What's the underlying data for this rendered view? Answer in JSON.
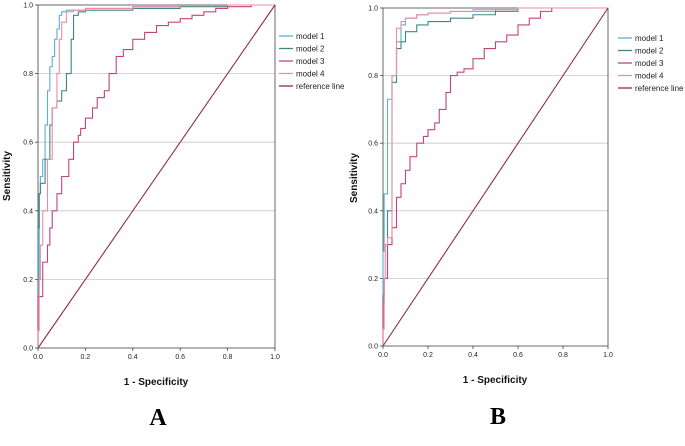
{
  "chart_data": [
    {
      "type": "line",
      "panel_label": "A",
      "xlabel": "1 - Specificity",
      "ylabel": "Sensitivity",
      "xlim": [
        0,
        1
      ],
      "ylim": [
        0,
        1
      ],
      "xticks": [
        "0.0",
        "0.2",
        "0.4",
        "0.6",
        "0.8",
        "1.0"
      ],
      "yticks": [
        "0.0",
        "0.2",
        "0.4",
        "0.6",
        "0.8",
        "1.0"
      ],
      "grid": "horizontal",
      "legend": "top-right",
      "series": [
        {
          "name": "model 1",
          "color": "#5aafd6",
          "step": true,
          "x": [
            0,
            0.005,
            0.01,
            0.02,
            0.03,
            0.04,
            0.05,
            0.06,
            0.07,
            0.08,
            0.09,
            0.1,
            0.12,
            0.2,
            0.4,
            0.6,
            0.8,
            1.0
          ],
          "y": [
            0,
            0.2,
            0.45,
            0.5,
            0.55,
            0.65,
            0.75,
            0.82,
            0.85,
            0.9,
            0.93,
            0.97,
            0.98,
            0.985,
            0.99,
            0.995,
            0.998,
            1.0
          ]
        },
        {
          "name": "model 2",
          "color": "#3a8a86",
          "step": true,
          "x": [
            0,
            0.005,
            0.01,
            0.03,
            0.05,
            0.06,
            0.08,
            0.1,
            0.12,
            0.14,
            0.15,
            0.17,
            0.2,
            0.4,
            0.6,
            0.8,
            1.0
          ],
          "y": [
            0,
            0.35,
            0.45,
            0.48,
            0.55,
            0.65,
            0.7,
            0.72,
            0.75,
            0.8,
            0.9,
            0.97,
            0.98,
            0.985,
            0.99,
            0.995,
            1.0
          ]
        },
        {
          "name": "model 3",
          "color": "#c2457a",
          "step": true,
          "x": [
            0,
            0.02,
            0.04,
            0.05,
            0.06,
            0.08,
            0.1,
            0.13,
            0.15,
            0.17,
            0.18,
            0.2,
            0.23,
            0.25,
            0.28,
            0.3,
            0.33,
            0.36,
            0.4,
            0.45,
            0.5,
            0.55,
            0.6,
            0.65,
            0.7,
            0.75,
            0.8,
            0.9,
            1.0
          ],
          "y": [
            0,
            0.15,
            0.25,
            0.3,
            0.35,
            0.4,
            0.45,
            0.5,
            0.55,
            0.6,
            0.62,
            0.64,
            0.67,
            0.7,
            0.73,
            0.75,
            0.8,
            0.85,
            0.87,
            0.9,
            0.92,
            0.94,
            0.95,
            0.96,
            0.97,
            0.98,
            0.99,
            0.995,
            1.0
          ]
        },
        {
          "name": "model 4",
          "color": "#f08ca0",
          "step": true,
          "x": [
            0,
            0.005,
            0.01,
            0.02,
            0.04,
            0.06,
            0.08,
            0.09,
            0.1,
            0.12,
            0.15,
            0.2,
            0.4,
            0.6,
            0.8,
            1.0
          ],
          "y": [
            0,
            0.05,
            0.2,
            0.3,
            0.4,
            0.55,
            0.7,
            0.8,
            0.9,
            0.95,
            0.98,
            0.985,
            0.99,
            0.995,
            0.998,
            1.0
          ]
        },
        {
          "name": "reference line",
          "color": "#8b2f45",
          "step": false,
          "x": [
            0,
            1
          ],
          "y": [
            0,
            1
          ]
        }
      ]
    },
    {
      "type": "line",
      "panel_label": "B",
      "xlabel": "1 - Specificity",
      "ylabel": "Sensitivity",
      "xlim": [
        0,
        1
      ],
      "ylim": [
        0,
        1
      ],
      "xticks": [
        "0.0",
        "0.2",
        "0.4",
        "0.6",
        "0.8",
        "1.0"
      ],
      "yticks": [
        "0.0",
        "0.2",
        "0.4",
        "0.6",
        "0.8",
        "1.0"
      ],
      "grid": "horizontal",
      "legend": "top-right",
      "series": [
        {
          "name": "model 1",
          "color": "#5aafd6",
          "step": true,
          "x": [
            0,
            0.005,
            0.02,
            0.04,
            0.06,
            0.08,
            0.1,
            0.15,
            0.2,
            0.3,
            0.4,
            0.5,
            0.6,
            0.8,
            1.0
          ],
          "y": [
            0,
            0.28,
            0.45,
            0.73,
            0.8,
            0.9,
            0.95,
            0.97,
            0.98,
            0.985,
            0.99,
            0.99,
            0.995,
            1.0,
            1.0
          ]
        },
        {
          "name": "model 2",
          "color": "#3a8a86",
          "step": true,
          "x": [
            0,
            0.005,
            0.02,
            0.04,
            0.06,
            0.08,
            0.1,
            0.15,
            0.2,
            0.3,
            0.4,
            0.5,
            0.6,
            0.8,
            1.0
          ],
          "y": [
            0,
            0.15,
            0.2,
            0.4,
            0.78,
            0.88,
            0.9,
            0.93,
            0.95,
            0.96,
            0.97,
            0.98,
            0.99,
            1.0,
            1.0
          ]
        },
        {
          "name": "model 3",
          "color": "#c2457a",
          "step": true,
          "x": [
            0,
            0.005,
            0.02,
            0.04,
            0.06,
            0.08,
            0.1,
            0.12,
            0.15,
            0.18,
            0.2,
            0.23,
            0.25,
            0.28,
            0.3,
            0.33,
            0.36,
            0.4,
            0.45,
            0.5,
            0.55,
            0.6,
            0.65,
            0.7,
            0.75,
            0.8,
            1.0
          ],
          "y": [
            0,
            0.13,
            0.2,
            0.3,
            0.35,
            0.44,
            0.48,
            0.52,
            0.56,
            0.6,
            0.62,
            0.64,
            0.66,
            0.7,
            0.75,
            0.8,
            0.81,
            0.82,
            0.85,
            0.88,
            0.9,
            0.92,
            0.95,
            0.97,
            0.99,
            1.0,
            1.0
          ]
        },
        {
          "name": "model 4",
          "color": "#f08ca0",
          "step": true,
          "x": [
            0,
            0.005,
            0.01,
            0.02,
            0.04,
            0.06,
            0.08,
            0.1,
            0.15,
            0.2,
            0.3,
            0.4,
            0.6,
            0.8,
            1.0
          ],
          "y": [
            0,
            0.05,
            0.2,
            0.3,
            0.32,
            0.8,
            0.94,
            0.96,
            0.97,
            0.98,
            0.985,
            0.99,
            0.995,
            1.0,
            1.0
          ]
        },
        {
          "name": "reference line",
          "color": "#8b2f45",
          "step": false,
          "x": [
            0,
            1
          ],
          "y": [
            0,
            1
          ]
        }
      ]
    }
  ]
}
